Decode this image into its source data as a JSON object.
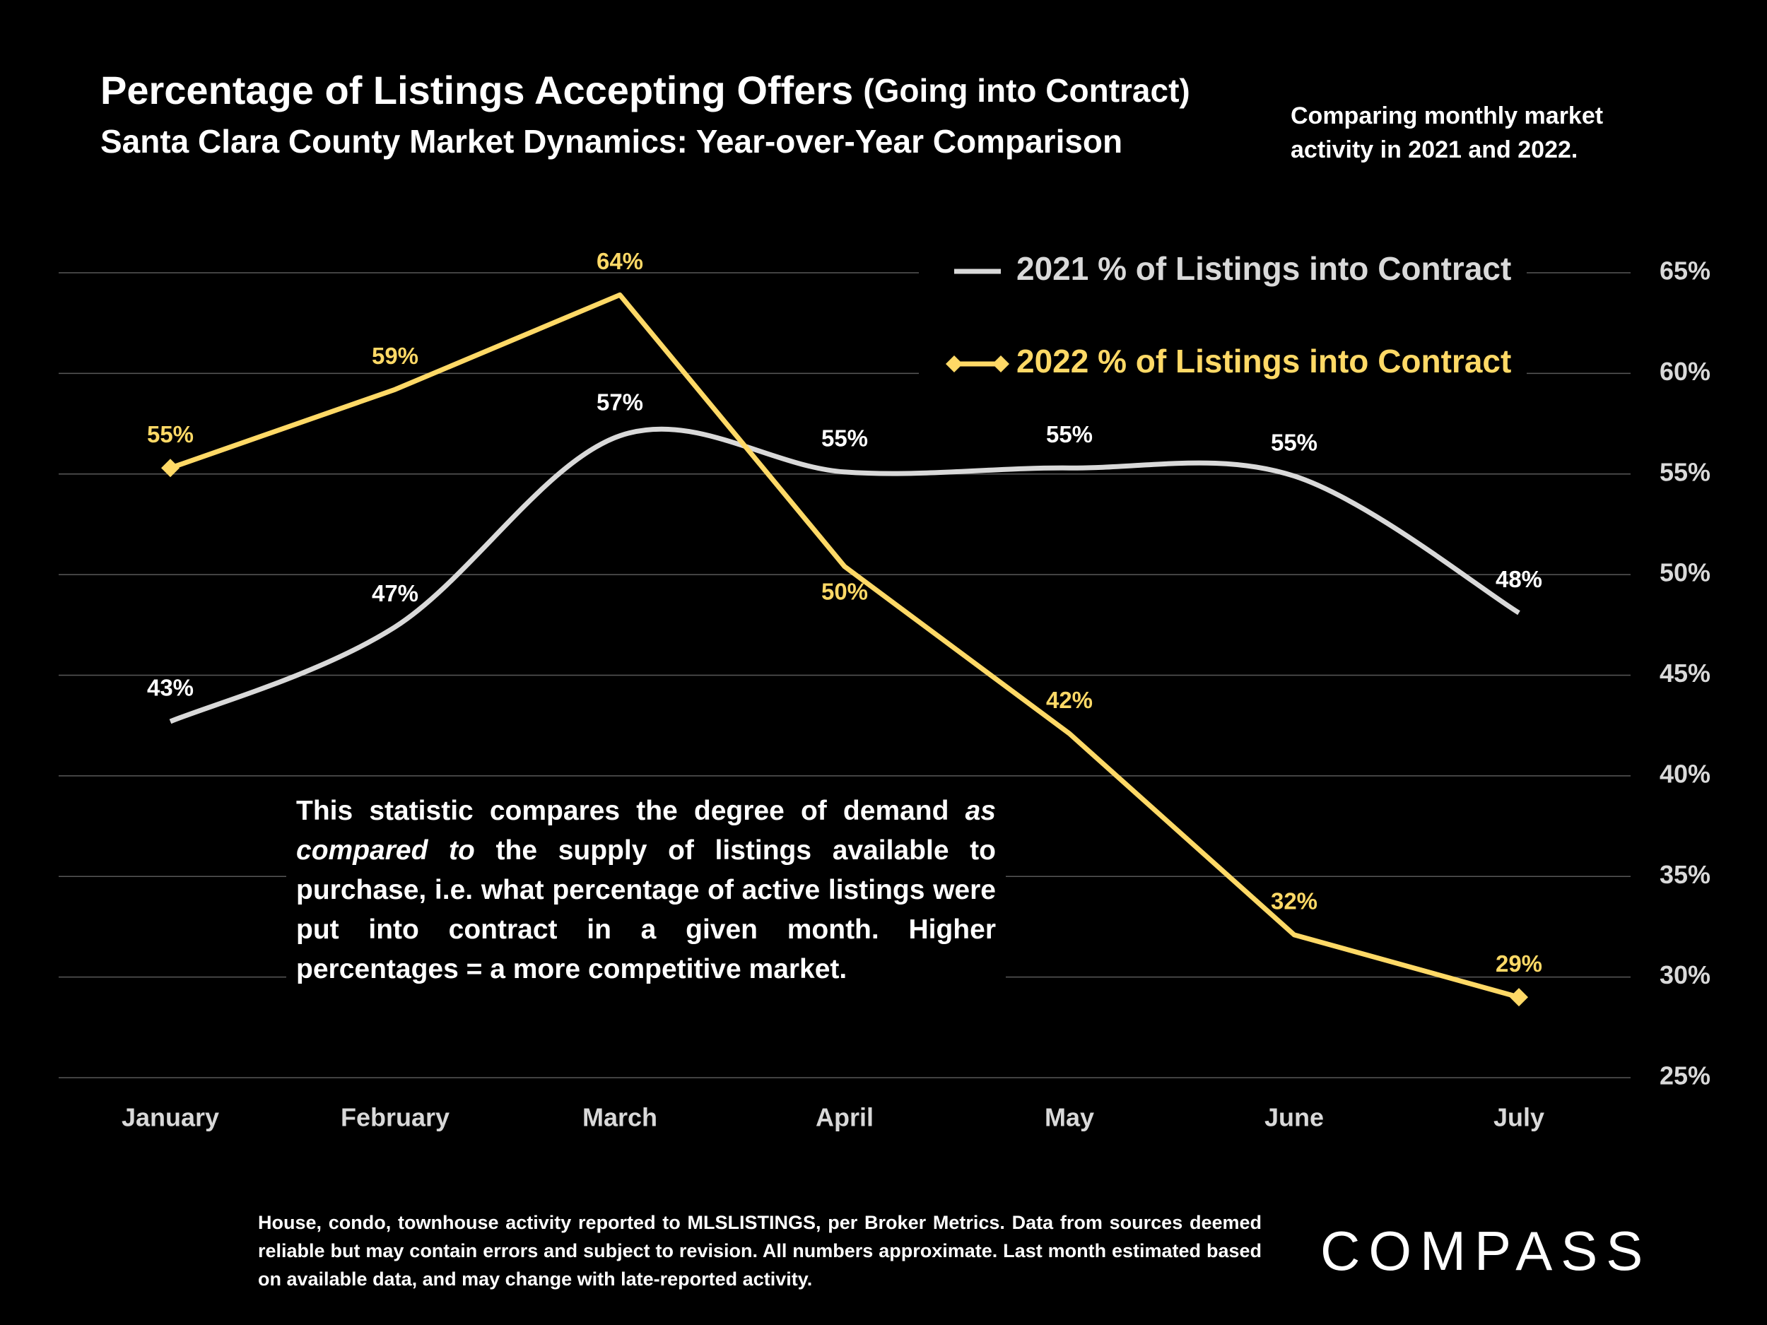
{
  "chart_data": {
    "type": "line",
    "title": "Percentage of Listings Accepting Offers",
    "title_suffix": "(Going into Contract)",
    "subtitle": "Santa Clara County Market Dynamics: Year-over-Year Comparison",
    "note": "Comparing monthly market activity in 2021 and 2022.",
    "annotation": [
      "This statistic compares the degree of demand ",
      "as compared to",
      " the supply of listings available to purchase, i.e. what percentage of active listings were put into contract in a given month. Higher percentages = a more competitive market."
    ],
    "footer": "House, condo, townhouse activity reported to MLSLISTINGS, per Broker Metrics. Data from sources deemed reliable but may contain errors and subject to revision. All numbers approximate. Last month estimated based on available data, and may change with late-reported activity.",
    "logo": "COMPASS",
    "categories": [
      "January",
      "February",
      "March",
      "April",
      "May",
      "June",
      "July"
    ],
    "series": [
      {
        "name": "2021 % of Listings into Contract",
        "color": "#d9d9d9",
        "smooth": true,
        "marker": "none",
        "values": [
          42.7,
          47.4,
          56.9,
          55.1,
          55.3,
          54.9,
          48.1
        ],
        "value_labels": [
          "43%",
          "47%",
          "57%",
          "55%",
          "55%",
          "55%",
          "48%"
        ]
      },
      {
        "name": "2022 % of Listings into Contract",
        "color": "#ffd966",
        "smooth": false,
        "marker": "diamond",
        "values": [
          55.3,
          59.2,
          63.9,
          50.4,
          42.1,
          32.1,
          29.0
        ],
        "value_labels": [
          "55%",
          "59%",
          "64%",
          "50%",
          "42%",
          "32%",
          "29%"
        ]
      }
    ],
    "ylim": [
      25,
      65
    ],
    "yticks": [
      {
        "value": 25,
        "label": "25%"
      },
      {
        "value": 30,
        "label": "30%"
      },
      {
        "value": 35,
        "label": "35%"
      },
      {
        "value": 40,
        "label": "40%"
      },
      {
        "value": 45,
        "label": "45%"
      },
      {
        "value": 50,
        "label": "50%"
      },
      {
        "value": 55,
        "label": "55%"
      },
      {
        "value": 60,
        "label": "60%"
      },
      {
        "value": 65,
        "label": "65%"
      }
    ],
    "y_axis_side": "right",
    "grid": true,
    "legend": "top-right"
  }
}
